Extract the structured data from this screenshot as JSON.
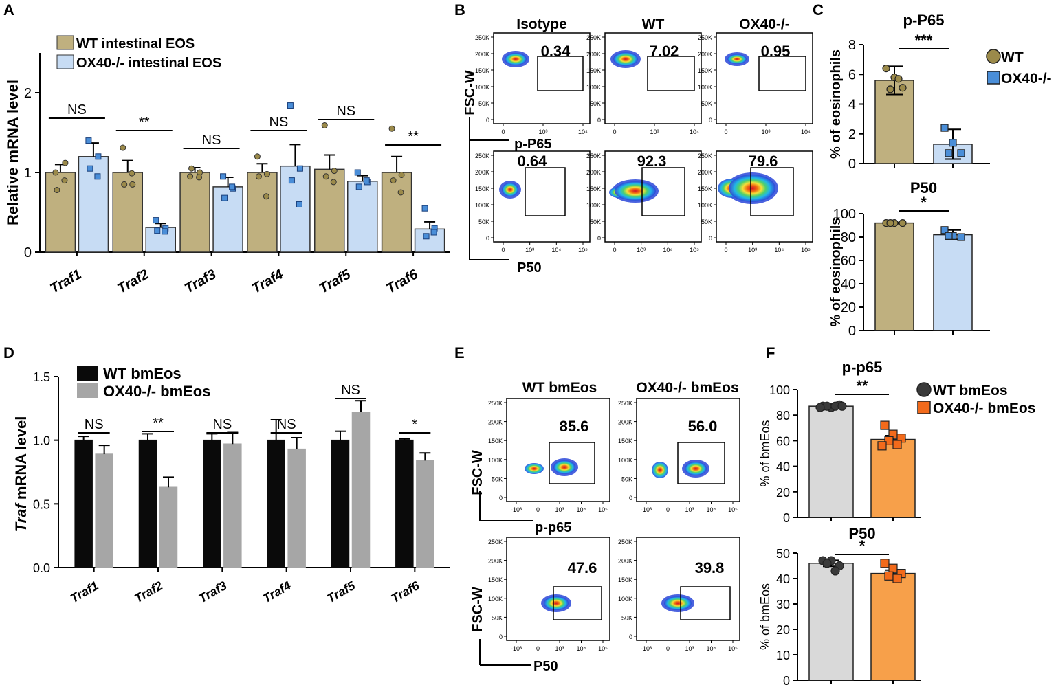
{
  "colors": {
    "wt_tan": "#bfb07f",
    "wt_tan_dot": "#9b8a4a",
    "ko_blue": "#c7dcf4",
    "ko_blue_dot": "#4a8ed8",
    "wt_black": "#0a0a0a",
    "ko_grey": "#a6a6a6",
    "wt_lightgrey": "#d9d9d9",
    "ko_orange": "#f7a04a",
    "ko_orange_dot": "#f26a1b",
    "dot_dark": "#3a3a3a"
  },
  "panel_labels": {
    "A": "A",
    "B": "B",
    "C": "C",
    "D": "D",
    "E": "E",
    "F": "F"
  },
  "chart_data": [
    {
      "id": "A",
      "type": "bar",
      "ylabel": "Relative mRNA  level",
      "ylim": [
        0,
        2.5
      ],
      "yticks": [
        "0",
        "1",
        "2"
      ],
      "categories": [
        "Traf1",
        "Traf2",
        "Traf3",
        "Traf4",
        "Traf5",
        "Traf6"
      ],
      "series": [
        {
          "name": "WT intestinal EOS",
          "values": [
            1.0,
            1.0,
            1.0,
            1.0,
            1.04,
            1.0
          ],
          "errors": [
            0.1,
            0.15,
            0.06,
            0.11,
            0.18,
            0.2
          ],
          "points": [
            [
              1.0,
              1.12,
              0.78,
              0.9
            ],
            [
              1.31,
              0.85,
              0.85,
              0.99
            ],
            [
              0.95,
              1.0,
              1.05,
              0.94
            ],
            [
              1.2,
              0.98,
              0.95,
              0.7
            ],
            [
              1.59,
              1.02,
              0.95,
              0.88
            ],
            [
              1.55,
              0.97,
              0.9,
              0.75
            ]
          ]
        },
        {
          "name": "OX40-/- intestinal EOS",
          "values": [
            1.2,
            0.31,
            0.82,
            1.08,
            0.89,
            0.29
          ],
          "errors": [
            0.17,
            0.05,
            0.12,
            0.27,
            0.07,
            0.09
          ],
          "points": [
            [
              1.4,
              1.2,
              1.05,
              0.95
            ],
            [
              0.4,
              0.3,
              0.27,
              0.26
            ],
            [
              0.95,
              0.8,
              0.68,
              0.82
            ],
            [
              1.84,
              1.05,
              0.9,
              0.6
            ],
            [
              1.0,
              0.88,
              0.82,
              0.9
            ],
            [
              0.55,
              0.3,
              0.2,
              0.25
            ]
          ]
        }
      ],
      "significance": [
        "NS",
        "**",
        "NS",
        "NS",
        "NS",
        "**"
      ]
    },
    {
      "id": "C1",
      "type": "bar",
      "title": "p-P65",
      "ylabel": "% of eosinophils",
      "ylim": [
        0,
        8
      ],
      "yticks": [
        "0",
        "2",
        "4",
        "6",
        "8"
      ],
      "categories": [
        "WT",
        "OX40-/-"
      ],
      "values": [
        5.6,
        1.3
      ],
      "errors": [
        0.95,
        1.0
      ],
      "points": [
        [
          6.4,
          5.8,
          5.1,
          5.0,
          5.7
        ],
        [
          2.4,
          1.4,
          0.7,
          0.7
        ]
      ],
      "significance": "***",
      "legend": [
        "WT",
        "OX40-/-"
      ]
    },
    {
      "id": "C2",
      "type": "bar",
      "title": "P50",
      "ylabel": "% of eosinophils",
      "ylim": [
        0,
        100
      ],
      "yticks": [
        "0",
        "20",
        "40",
        "60",
        "80",
        "100"
      ],
      "categories": [
        "WT",
        "OX40-/-"
      ],
      "values": [
        92,
        82
      ],
      "errors": [
        0.5,
        4
      ],
      "points": [
        [
          92,
          92,
          92,
          92
        ],
        [
          86,
          81,
          80,
          81
        ]
      ],
      "significance": "*"
    },
    {
      "id": "D",
      "type": "bar",
      "ylabel_italic": "Traf",
      "ylabel_rest": " mRNA level",
      "ylim": [
        0,
        1.5
      ],
      "yticks": [
        "0.0",
        "0.5",
        "1.0",
        "1.5"
      ],
      "categories": [
        "Traf1",
        "Traf2",
        "Traf3",
        "Traf4",
        "Traf5",
        "Traf6"
      ],
      "series": [
        {
          "name": "WT bmEos",
          "values": [
            1.0,
            1.0,
            1.0,
            1.0,
            1.0,
            1.0
          ],
          "errors": [
            0.03,
            0.05,
            0.05,
            0.16,
            0.07,
            0.01
          ]
        },
        {
          "name": "OX40-/- bmEos",
          "values": [
            0.89,
            0.63,
            0.97,
            0.93,
            1.22,
            0.84
          ],
          "errors": [
            0.07,
            0.08,
            0.09,
            0.09,
            0.09,
            0.06
          ]
        }
      ],
      "significance": [
        "NS",
        "**",
        "NS",
        "NS",
        "NS",
        "*"
      ]
    },
    {
      "id": "F1",
      "type": "bar",
      "title": "p-p65",
      "ylabel": "% of bmEos",
      "ylim": [
        0,
        100
      ],
      "yticks": [
        "0",
        "20",
        "40",
        "60",
        "80",
        "100"
      ],
      "categories": [
        "WT bmEos",
        "OX40-/- bmEos"
      ],
      "values": [
        87,
        61
      ],
      "errors": [
        1,
        3
      ],
      "points": [
        [
          87,
          86,
          88,
          87,
          87,
          86,
          87
        ],
        [
          72,
          65,
          62,
          60,
          57,
          56
        ]
      ],
      "significance": "**",
      "legend": [
        "WT bmEos",
        "OX40-/- bmEos"
      ]
    },
    {
      "id": "F2",
      "type": "bar",
      "title": "P50",
      "ylabel": "% of bmEos",
      "ylim": [
        0,
        50
      ],
      "yticks": [
        "0",
        "10",
        "20",
        "30",
        "40",
        "50"
      ],
      "categories": [
        "WT bmEos",
        "OX40-/- bmEos"
      ],
      "values": [
        46,
        42
      ],
      "errors": [
        1.2,
        1.3
      ],
      "points": [
        [
          47,
          47,
          45,
          46,
          43
        ],
        [
          46,
          44,
          42,
          41,
          40
        ]
      ],
      "significance": "*"
    }
  ],
  "flow_B": {
    "columns": [
      "Isotype",
      "WT",
      "OX40-/-"
    ],
    "yaxis_label": "FSC-W",
    "row_labels": [
      "p-P65",
      "P50"
    ],
    "yticks": [
      "250K",
      "200K",
      "150K",
      "100K",
      "50K",
      "0"
    ],
    "xticks_top": [
      "0",
      "10³",
      "10⁴"
    ],
    "xticks_bottom": [
      "0",
      "10³",
      "10⁴",
      "10⁵"
    ],
    "values": [
      [
        "0.34",
        "7.02",
        "0.95"
      ],
      [
        "0.64",
        "92.3",
        "79.6"
      ]
    ]
  },
  "flow_E": {
    "columns": [
      "WT bmEos",
      "OX40-/- bmEos"
    ],
    "yaxis_label": "FSC-W",
    "row_labels": [
      "p-p65",
      "P50"
    ],
    "yticks": [
      "250K",
      "200K",
      "150K",
      "100K",
      "50K",
      "0"
    ],
    "xticks": [
      "-10³",
      "0",
      "10³",
      "10⁴",
      "10⁵"
    ],
    "values": [
      [
        "85.6",
        "56.0"
      ],
      [
        "47.6",
        "39.8"
      ]
    ]
  }
}
